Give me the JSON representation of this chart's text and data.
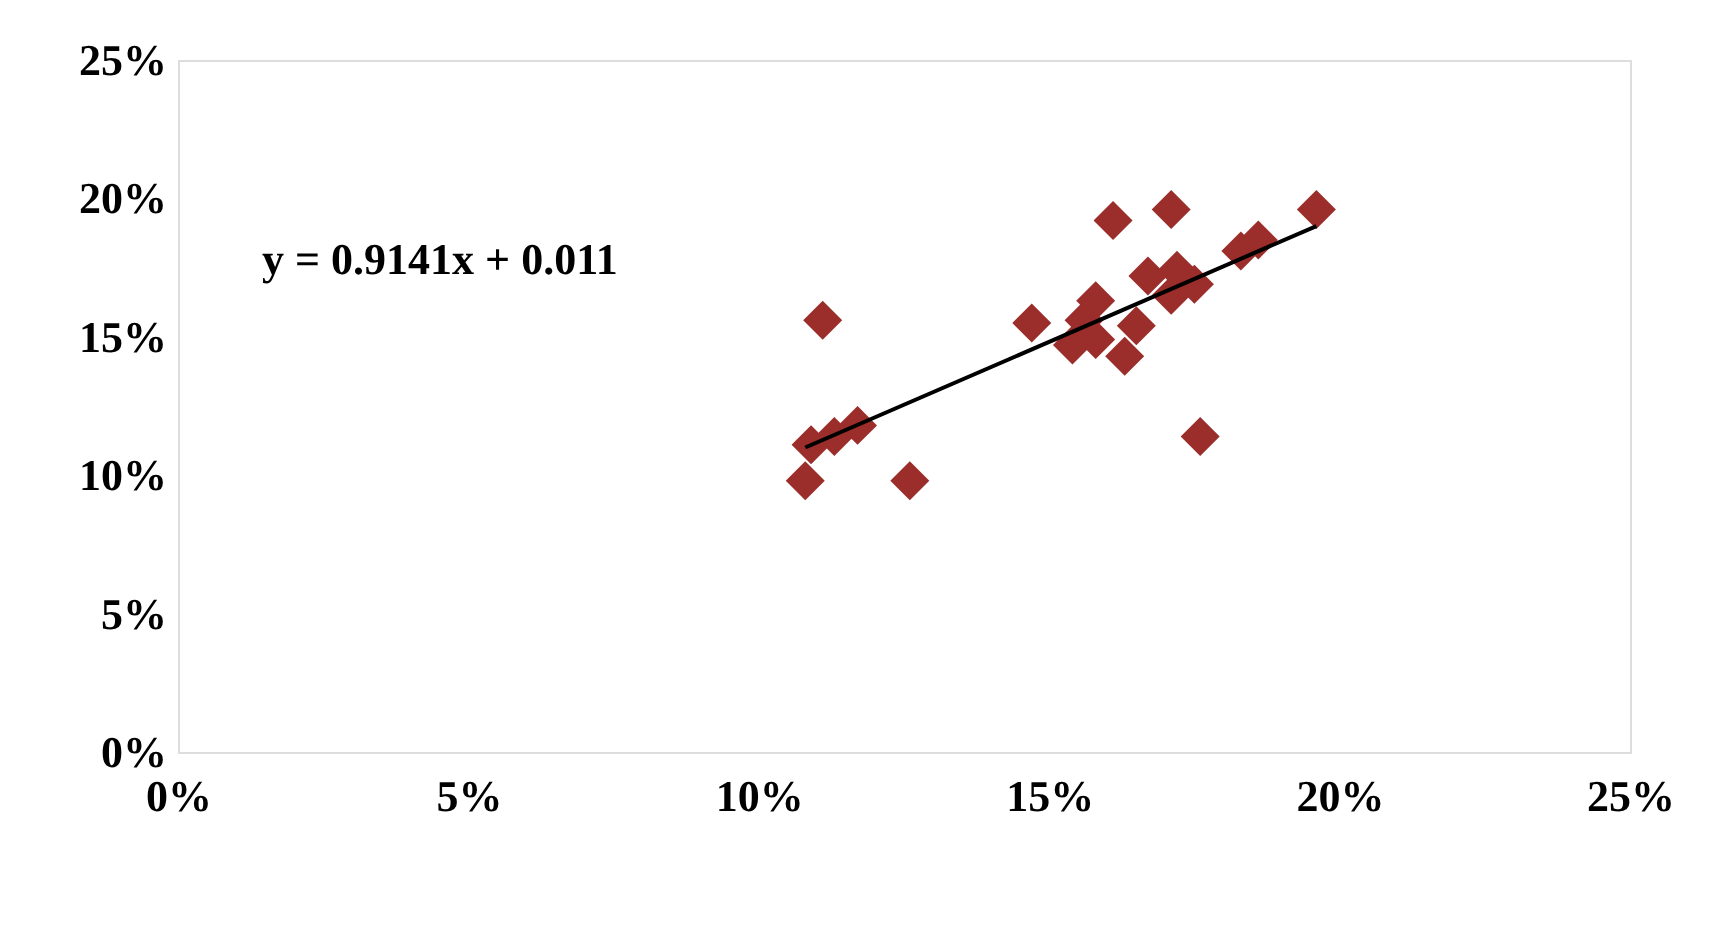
{
  "chart_data": {
    "type": "scatter",
    "grid": false,
    "annotations": [
      "y = 0.9141x + 0.011"
    ],
    "xlim": [
      0,
      0.25
    ],
    "ylim": [
      0,
      0.25
    ],
    "xticks": [
      {
        "value": 0,
        "label": "0%"
      },
      {
        "value": 0.05,
        "label": "5%"
      },
      {
        "value": 0.1,
        "label": "10%"
      },
      {
        "value": 0.15,
        "label": "15%"
      },
      {
        "value": 0.2,
        "label": "20%"
      },
      {
        "value": 0.25,
        "label": "25%"
      }
    ],
    "yticks": [
      {
        "value": 0,
        "label": "0%"
      },
      {
        "value": 0.05,
        "label": "5%"
      },
      {
        "value": 0.1,
        "label": "10%"
      },
      {
        "value": 0.15,
        "label": "15%"
      },
      {
        "value": 0.2,
        "label": "20%"
      },
      {
        "value": 0.25,
        "label": "25%"
      }
    ],
    "series": [
      {
        "marker": "diamond",
        "color": "#9b2d2a",
        "x": [
          0.108,
          0.109,
          0.113,
          0.117,
          0.111,
          0.126,
          0.147,
          0.158,
          0.154,
          0.165,
          0.158,
          0.161,
          0.171,
          0.167,
          0.175,
          0.183,
          0.186,
          0.196,
          0.176,
          0.172,
          0.171,
          0.163,
          0.156
        ],
        "values": [
          0.098,
          0.111,
          0.114,
          0.118,
          0.156,
          0.098,
          0.155,
          0.163,
          0.147,
          0.154,
          0.149,
          0.192,
          0.196,
          0.172,
          0.169,
          0.181,
          0.185,
          0.196,
          0.114,
          0.174,
          0.165,
          0.143,
          0.156
        ]
      },
      {
        "type": "line",
        "marker": "none",
        "color": "#000000",
        "x": [
          0.108,
          0.196
        ],
        "values": [
          0.11,
          0.19
        ]
      }
    ]
  }
}
